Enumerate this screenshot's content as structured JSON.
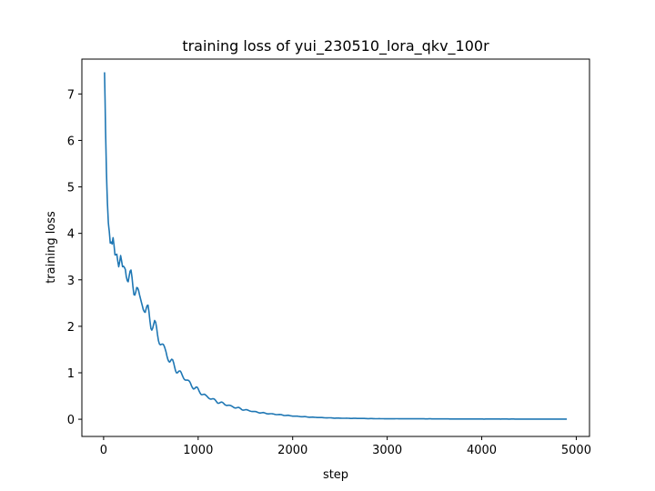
{
  "chart_data": {
    "type": "line",
    "title": "training loss of yui_230510_lora_qkv_100r",
    "xlabel": "step",
    "ylabel": "training loss",
    "xlim": [
      -230,
      5140
    ],
    "ylim": [
      -0.37,
      7.75
    ],
    "xticks": [
      0,
      1000,
      2000,
      3000,
      4000,
      5000
    ],
    "yticks": [
      0,
      1,
      2,
      3,
      4,
      5,
      6,
      7
    ],
    "grid": false,
    "legend": null,
    "line_color": "#1f77b4",
    "series": [
      {
        "x": [
          10,
          20,
          30,
          40,
          50,
          60,
          70,
          80,
          90,
          100,
          120,
          140,
          160,
          180,
          200,
          230,
          260,
          290,
          320,
          350,
          380,
          410,
          440,
          470,
          500,
          540,
          580,
          620,
          660,
          700,
          750,
          800,
          850,
          900,
          950,
          1000,
          1080,
          1160,
          1240,
          1320,
          1400,
          1500,
          1600,
          1700,
          1800,
          1900,
          2000,
          2150,
          2300,
          2450,
          2600,
          2800,
          3000,
          3250,
          3500,
          3750,
          4000,
          4250,
          4500,
          4700,
          4900
        ],
        "y": [
          7.38,
          6.1,
          5.2,
          4.6,
          4.3,
          4.2,
          3.95,
          3.9,
          3.75,
          3.8,
          3.45,
          3.6,
          3.35,
          3.5,
          3.2,
          3.3,
          3.0,
          3.05,
          2.8,
          2.85,
          2.6,
          2.5,
          2.3,
          2.35,
          2.1,
          2.0,
          1.75,
          1.6,
          1.45,
          1.25,
          1.15,
          1.0,
          0.9,
          0.8,
          0.7,
          0.62,
          0.5,
          0.42,
          0.35,
          0.3,
          0.25,
          0.2,
          0.16,
          0.13,
          0.11,
          0.09,
          0.07,
          0.05,
          0.035,
          0.025,
          0.02,
          0.015,
          0.01,
          0.01,
          0.008,
          0.006,
          0.005,
          0.005,
          0.004,
          0.004,
          0.004
        ]
      }
    ]
  }
}
